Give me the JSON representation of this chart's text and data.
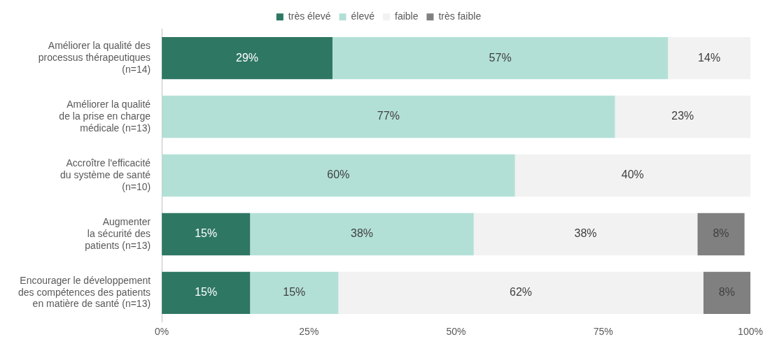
{
  "chart_data": {
    "type": "bar",
    "orientation": "horizontal",
    "stacked": true,
    "legend": "top",
    "grid": false,
    "categories": [
      "Améliorer la qualité des\nprocessus thérapeutiques\n(n=14)",
      "Améliorer la qualité\nde la prise en charge\nmédicale (n=13)",
      "Accroître l'efficacité\ndu système de santé\n(n=10)",
      "Augmenter\nla sécurité des\npatients (n=13)",
      "Encourager le développement\ndes compétences des patients\nen matière de santé (n=13)"
    ],
    "series": [
      {
        "name": "très élevé",
        "color": "#2e7763",
        "values": [
          29,
          null,
          null,
          15,
          15
        ],
        "value_labels": [
          "29%",
          null,
          null,
          "15%",
          "15%"
        ]
      },
      {
        "name": "élevé",
        "color": "#b3e0d6",
        "values": [
          57,
          77,
          60,
          38,
          15
        ],
        "value_labels": [
          "57%",
          "77%",
          "60%",
          "38%",
          "15%"
        ]
      },
      {
        "name": "faible",
        "color": "#f2f2f2",
        "values": [
          14,
          23,
          40,
          38,
          62
        ],
        "value_labels": [
          "14%",
          "23%",
          "40%",
          "38%",
          "62%"
        ]
      },
      {
        "name": "très faible",
        "color": "#808080",
        "values": [
          null,
          null,
          null,
          8,
          8
        ],
        "value_labels": [
          null,
          null,
          null,
          "8%",
          "8%"
        ]
      }
    ],
    "xlim": [
      0,
      100
    ],
    "xticks": [
      {
        "value": 0,
        "label": "0%"
      },
      {
        "value": 25,
        "label": "25%"
      },
      {
        "value": 50,
        "label": "50%"
      },
      {
        "value": 75,
        "label": "75%"
      },
      {
        "value": 100,
        "label": "100%"
      }
    ]
  }
}
